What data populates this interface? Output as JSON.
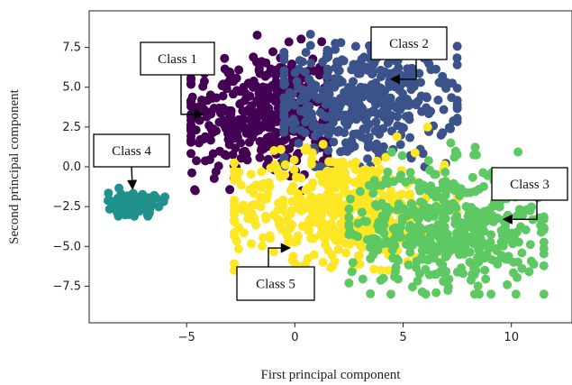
{
  "chart_data": {
    "type": "scatter",
    "xlabel": "First principal component",
    "ylabel": "Second principal component",
    "xlim": [
      -9.5,
      12.8
    ],
    "ylim": [
      -9.8,
      9.8
    ],
    "xticks": [
      -5,
      0,
      5,
      10
    ],
    "xtick_labels": [
      "−5",
      "0",
      "5",
      "10"
    ],
    "yticks": [
      7.5,
      5.0,
      2.5,
      0.0,
      -2.5,
      -5.0,
      -7.5
    ],
    "ytick_labels": [
      "7.5",
      "5.0",
      "2.5",
      "0.0",
      "−2.5",
      "−5.0",
      "−7.5"
    ],
    "grid": false,
    "legend": "none",
    "series": [
      {
        "name": "Class 1",
        "color": "#440154",
        "center": [
          -1.5,
          3.2
        ],
        "spread": [
          2.0,
          2.0
        ],
        "range_x": [
          -4.8,
          1.5
        ],
        "range_y": [
          -1.5,
          9.0
        ],
        "count": 420
      },
      {
        "name": "Class 2",
        "color": "#3b528b",
        "center": [
          3.0,
          4.0
        ],
        "spread": [
          2.2,
          1.8
        ],
        "range_x": [
          -0.5,
          7.5
        ],
        "range_y": [
          0.0,
          8.8
        ],
        "count": 420
      },
      {
        "name": "Class 5",
        "color": "#fde725",
        "center": [
          2.0,
          -2.5
        ],
        "spread": [
          2.5,
          1.7
        ],
        "range_x": [
          -2.8,
          7.5
        ],
        "range_y": [
          -6.5,
          2.5
        ],
        "count": 480
      },
      {
        "name": "Class 3",
        "color": "#5ec962",
        "center": [
          7.0,
          -3.8
        ],
        "spread": [
          2.2,
          1.9
        ],
        "range_x": [
          2.5,
          11.5
        ],
        "range_y": [
          -8.0,
          1.5
        ],
        "count": 480
      },
      {
        "name": "Class 4",
        "color": "#21918c",
        "center": [
          -7.5,
          -2.3
        ],
        "spread": [
          0.55,
          0.35
        ],
        "range_x": [
          -8.7,
          -6.0
        ],
        "range_y": [
          -3.1,
          -1.3
        ],
        "count": 140
      }
    ],
    "annotations": [
      {
        "text": "Class 1",
        "target": [
          -4.3,
          3.3
        ]
      },
      {
        "text": "Class 2",
        "target": [
          4.5,
          5.5
        ]
      },
      {
        "text": "Class 3",
        "target": [
          9.7,
          -3.3
        ]
      },
      {
        "text": "Class 4",
        "target": [
          -7.5,
          -1.3
        ]
      },
      {
        "text": "Class 5",
        "target": [
          -0.3,
          -5.1
        ]
      }
    ]
  }
}
